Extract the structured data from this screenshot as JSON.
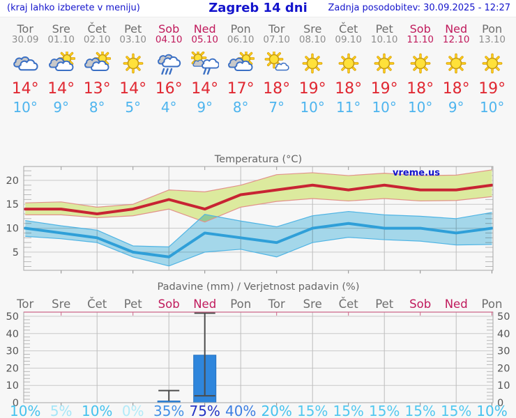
{
  "header": {
    "left_note": "(kraj lahko izberete v meniju)",
    "title": "Zagreb 14 dni",
    "updated": "Zadnja posodobitev: 30.09.2025 - 12:27"
  },
  "colors": {
    "link_blue": "#1414cc",
    "weekend_crimson": "#c01a5c",
    "high_red": "#e02832",
    "low_blue": "#4db4ee",
    "grid_gray": "#c9c9c9",
    "axis_gray": "#a5a5a5",
    "precip_top_axis_pink": "#cc6688"
  },
  "days": [
    {
      "name": "Tor",
      "date": "30.09",
      "weekend": false,
      "icon": "cloudy",
      "high_label": "14°",
      "low_label": "10°",
      "prob": "10%",
      "prob_color": "#45c2ee"
    },
    {
      "name": "Sre",
      "date": "01.10",
      "weekend": false,
      "icon": "partly-cloudy",
      "high_label": "14°",
      "low_label": "9°",
      "prob": "5%",
      "prob_color": "#a5e6f8"
    },
    {
      "name": "Čet",
      "date": "02.10",
      "weekend": false,
      "icon": "partly-cloudy",
      "high_label": "13°",
      "low_label": "8°",
      "prob": "10%",
      "prob_color": "#45c2ee"
    },
    {
      "name": "Pet",
      "date": "03.10",
      "weekend": false,
      "icon": "sunny",
      "high_label": "14°",
      "low_label": "5°",
      "prob": "0%",
      "prob_color": "#b2eaf8"
    },
    {
      "name": "Sob",
      "date": "04.10",
      "weekend": true,
      "icon": "rain",
      "high_label": "16°",
      "low_label": "4°",
      "prob": "35%",
      "prob_color": "#4491e6"
    },
    {
      "name": "Ned",
      "date": "05.10",
      "weekend": true,
      "icon": "sun-rain",
      "high_label": "14°",
      "low_label": "9°",
      "prob": "75%",
      "prob_color": "#2434c4"
    },
    {
      "name": "Pon",
      "date": "06.10",
      "weekend": false,
      "icon": "partly-cloudy",
      "high_label": "17°",
      "low_label": "8°",
      "prob": "40%",
      "prob_color": "#3c7ee2"
    },
    {
      "name": "Tor",
      "date": "07.10",
      "weekend": false,
      "icon": "mostly-sunny",
      "high_label": "18°",
      "low_label": "7°",
      "prob": "20%",
      "prob_color": "#45c2ee"
    },
    {
      "name": "Sre",
      "date": "08.10",
      "weekend": false,
      "icon": "sunny",
      "high_label": "19°",
      "low_label": "10°",
      "prob": "15%",
      "prob_color": "#52c8f0"
    },
    {
      "name": "Čet",
      "date": "09.10",
      "weekend": false,
      "icon": "sunny",
      "high_label": "18°",
      "low_label": "11°",
      "prob": "15%",
      "prob_color": "#52c8f0"
    },
    {
      "name": "Pet",
      "date": "10.10",
      "weekend": false,
      "icon": "sunny",
      "high_label": "19°",
      "low_label": "10°",
      "prob": "15%",
      "prob_color": "#52c8f0"
    },
    {
      "name": "Sob",
      "date": "11.10",
      "weekend": true,
      "icon": "sunny",
      "high_label": "18°",
      "low_label": "10°",
      "prob": "15%",
      "prob_color": "#52c8f0"
    },
    {
      "name": "Ned",
      "date": "12.10",
      "weekend": true,
      "icon": "sunny",
      "high_label": "18°",
      "low_label": "9°",
      "prob": "15%",
      "prob_color": "#52c8f0"
    },
    {
      "name": "Pon",
      "date": "13.10",
      "weekend": false,
      "icon": "sunny",
      "high_label": "19°",
      "low_label": "10°",
      "prob": "10%",
      "prob_color": "#45c2ee"
    }
  ],
  "chart_data": [
    {
      "type": "band-line",
      "title": "Temperatura (°C)",
      "watermark": "vreme.us",
      "categories": [
        "Tor",
        "Sre",
        "Čet",
        "Pet",
        "Sob",
        "Ned",
        "Pon",
        "Tor",
        "Sre",
        "Čet",
        "Pet",
        "Sob",
        "Ned",
        "Pon"
      ],
      "ylim": [
        1.2,
        22.9
      ],
      "yticks": [
        5,
        10,
        15,
        20
      ],
      "grid_day_indices": [
        2,
        4,
        6,
        8,
        10,
        12
      ],
      "series": [
        {
          "name": "max temperatura",
          "color": "#c82433",
          "values": [
            14,
            14,
            13,
            14,
            16,
            14,
            17,
            18,
            19,
            18,
            19,
            18,
            18,
            19
          ],
          "band_upper": [
            15.3,
            15.5,
            14.4,
            15.0,
            18.0,
            17.6,
            19.0,
            21.2,
            21.6,
            21.0,
            21.5,
            21.0,
            21.1,
            22.2
          ],
          "band_lower": [
            12.8,
            12.8,
            12.2,
            12.6,
            14.0,
            11.3,
            14.4,
            15.6,
            16.2,
            15.7,
            16.2,
            15.7,
            15.8,
            16.6
          ],
          "band_fill": "#dcea9e",
          "band_edge": "#e2928a"
        },
        {
          "name": "min temperatura",
          "color": "#2f9fd8",
          "values": [
            10,
            9,
            8,
            5,
            4,
            9,
            8,
            7,
            10,
            11,
            10,
            10,
            9,
            10
          ],
          "band_upper": [
            11.6,
            10.5,
            9.6,
            6.3,
            6.1,
            12.9,
            11.5,
            10.3,
            12.6,
            13.5,
            12.8,
            12.5,
            12.0,
            13.3
          ],
          "band_lower": [
            8.3,
            7.8,
            7.0,
            4.0,
            2.1,
            5.0,
            5.6,
            4.0,
            7.0,
            8.1,
            7.6,
            7.3,
            6.5,
            6.6
          ],
          "band_fill": "#a9def2",
          "band_edge": "#4fb4e4"
        }
      ]
    },
    {
      "type": "bar",
      "title": "Padavine (mm) / Verjetnost padavin (%)",
      "categories": [
        "Tor",
        "Sre",
        "Čet",
        "Pet",
        "Sob",
        "Ned",
        "Pon",
        "Tor",
        "Sre",
        "Čet",
        "Pet",
        "Sob",
        "Ned",
        "Pon"
      ],
      "ylim": [
        0,
        52.4
      ],
      "yticks": [
        0,
        10,
        20,
        30,
        40,
        50
      ],
      "grid_day_indices": [
        2,
        4,
        6,
        8,
        10,
        12
      ],
      "values": [
        0,
        0,
        0,
        0,
        1,
        27.5,
        0,
        0,
        0,
        0,
        0,
        0,
        0,
        0
      ],
      "bar_color": "#2f86dc",
      "whiskers": [
        {
          "index": 4,
          "low": 1,
          "high": 7,
          "low_cap": false
        },
        {
          "index": 5,
          "low": 4,
          "high": 52,
          "low_cap": true
        }
      ],
      "probabilities": [
        "10%",
        "5%",
        "10%",
        "0%",
        "35%",
        "75%",
        "40%",
        "20%",
        "15%",
        "15%",
        "15%",
        "15%",
        "15%",
        "10%"
      ]
    }
  ]
}
